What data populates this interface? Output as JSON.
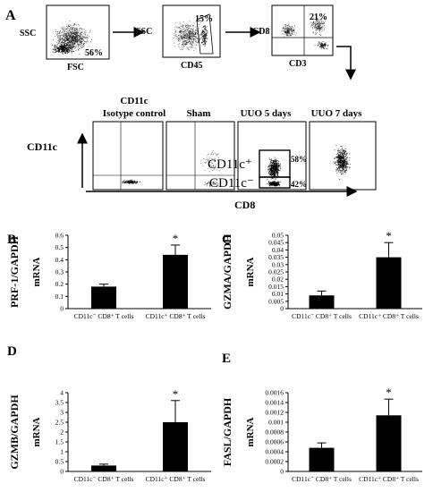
{
  "figure": {
    "panel_A": {
      "letter": "A",
      "plot1": {
        "y_label": "SSC",
        "x_label": "FSC",
        "percent": "56%"
      },
      "plot2": {
        "y_label": "SSC",
        "x_label": "CD45",
        "percent": "15%"
      },
      "plot3": {
        "y_label": "CD8",
        "x_label": "CD3",
        "percent": "21%"
      },
      "row_y_label": "CD11c",
      "row_x_label": "CD8",
      "titles": {
        "isotype_line1": "CD11c",
        "isotype_line2": "Isotype control",
        "sham": "Sham",
        "uuo5": "UUO 5 days",
        "uuo7": "UUO 7 days"
      },
      "gate_pos_label": "CD11c⁺",
      "gate_neg_label": "CD11c⁻",
      "gate_pos_pct": "58%",
      "gate_neg_pct": "42%"
    },
    "star": "*"
  },
  "chart_data": [
    {
      "type": "bar",
      "panel": "B",
      "ylabel_line1": "PRF-1/GAPDH",
      "ylabel_line2": "mRNA",
      "categories": [
        "CD11c⁻ CD8⁺ T cells",
        "CD11c⁺ CD8⁺ T cells"
      ],
      "values": [
        0.18,
        0.44
      ],
      "errors": [
        0.02,
        0.08
      ],
      "ylim": [
        0,
        0.6
      ],
      "ticks": [
        "0",
        "0.1",
        "0.2",
        "0.3",
        "0.4",
        "0.5",
        "0.6"
      ],
      "tick_values": [
        0,
        0.1,
        0.2,
        0.3,
        0.4,
        0.5,
        0.6
      ],
      "significance": [
        false,
        true
      ]
    },
    {
      "type": "bar",
      "panel": "C",
      "ylabel_line1": "GZMA/GAPDH",
      "ylabel_line2": "mRNA",
      "categories": [
        "CD11c⁻ CD8⁺ T cells",
        "CD11c⁺ CD8⁺ T cells"
      ],
      "values": [
        0.009,
        0.035
      ],
      "errors": [
        0.003,
        0.01
      ],
      "ylim": [
        0,
        0.05
      ],
      "ticks": [
        "0",
        "0.005",
        "0.01",
        "0.015",
        "0.02",
        "0.025",
        "0.03",
        "0.035",
        "0.04",
        "0.045",
        "0.05"
      ],
      "tick_values": [
        0,
        0.005,
        0.01,
        0.015,
        0.02,
        0.025,
        0.03,
        0.035,
        0.04,
        0.045,
        0.05
      ],
      "significance": [
        false,
        true
      ]
    },
    {
      "type": "bar",
      "panel": "D",
      "ylabel_line1": "GZMB/GAPDH",
      "ylabel_line2": "mRNA",
      "categories": [
        "CD11c⁻ CD8⁺ T cells",
        "CD11c⁺ CD8⁺ T cells"
      ],
      "values": [
        0.3,
        2.5
      ],
      "errors": [
        0.07,
        1.1
      ],
      "ylim": [
        0,
        4
      ],
      "ticks": [
        "0",
        "0.5",
        "1",
        "1.5",
        "2",
        "2.5",
        "3",
        "3.5",
        "4"
      ],
      "tick_values": [
        0,
        0.5,
        1,
        1.5,
        2,
        2.5,
        3,
        3.5,
        4
      ],
      "significance": [
        false,
        true
      ]
    },
    {
      "type": "bar",
      "panel": "E",
      "ylabel_line1": "FASL/GAPDH",
      "ylabel_line2": "mRNA",
      "categories": [
        "CD11c⁻ CD8⁺ T cells",
        "CD11c⁺ CD8⁺ T cells"
      ],
      "values": [
        0.00048,
        0.00114
      ],
      "errors": [
        0.0001,
        0.00033
      ],
      "ylim": [
        0,
        0.0016
      ],
      "ticks": [
        "0",
        "0.0002",
        "0.0004",
        "0.0006",
        "0.0008",
        "0.001",
        "0.0012",
        "0.0014",
        "0.0016"
      ],
      "tick_values": [
        0,
        0.0002,
        0.0004,
        0.0006,
        0.0008,
        0.001,
        0.0012,
        0.0014,
        0.0016
      ],
      "significance": [
        false,
        true
      ]
    }
  ]
}
